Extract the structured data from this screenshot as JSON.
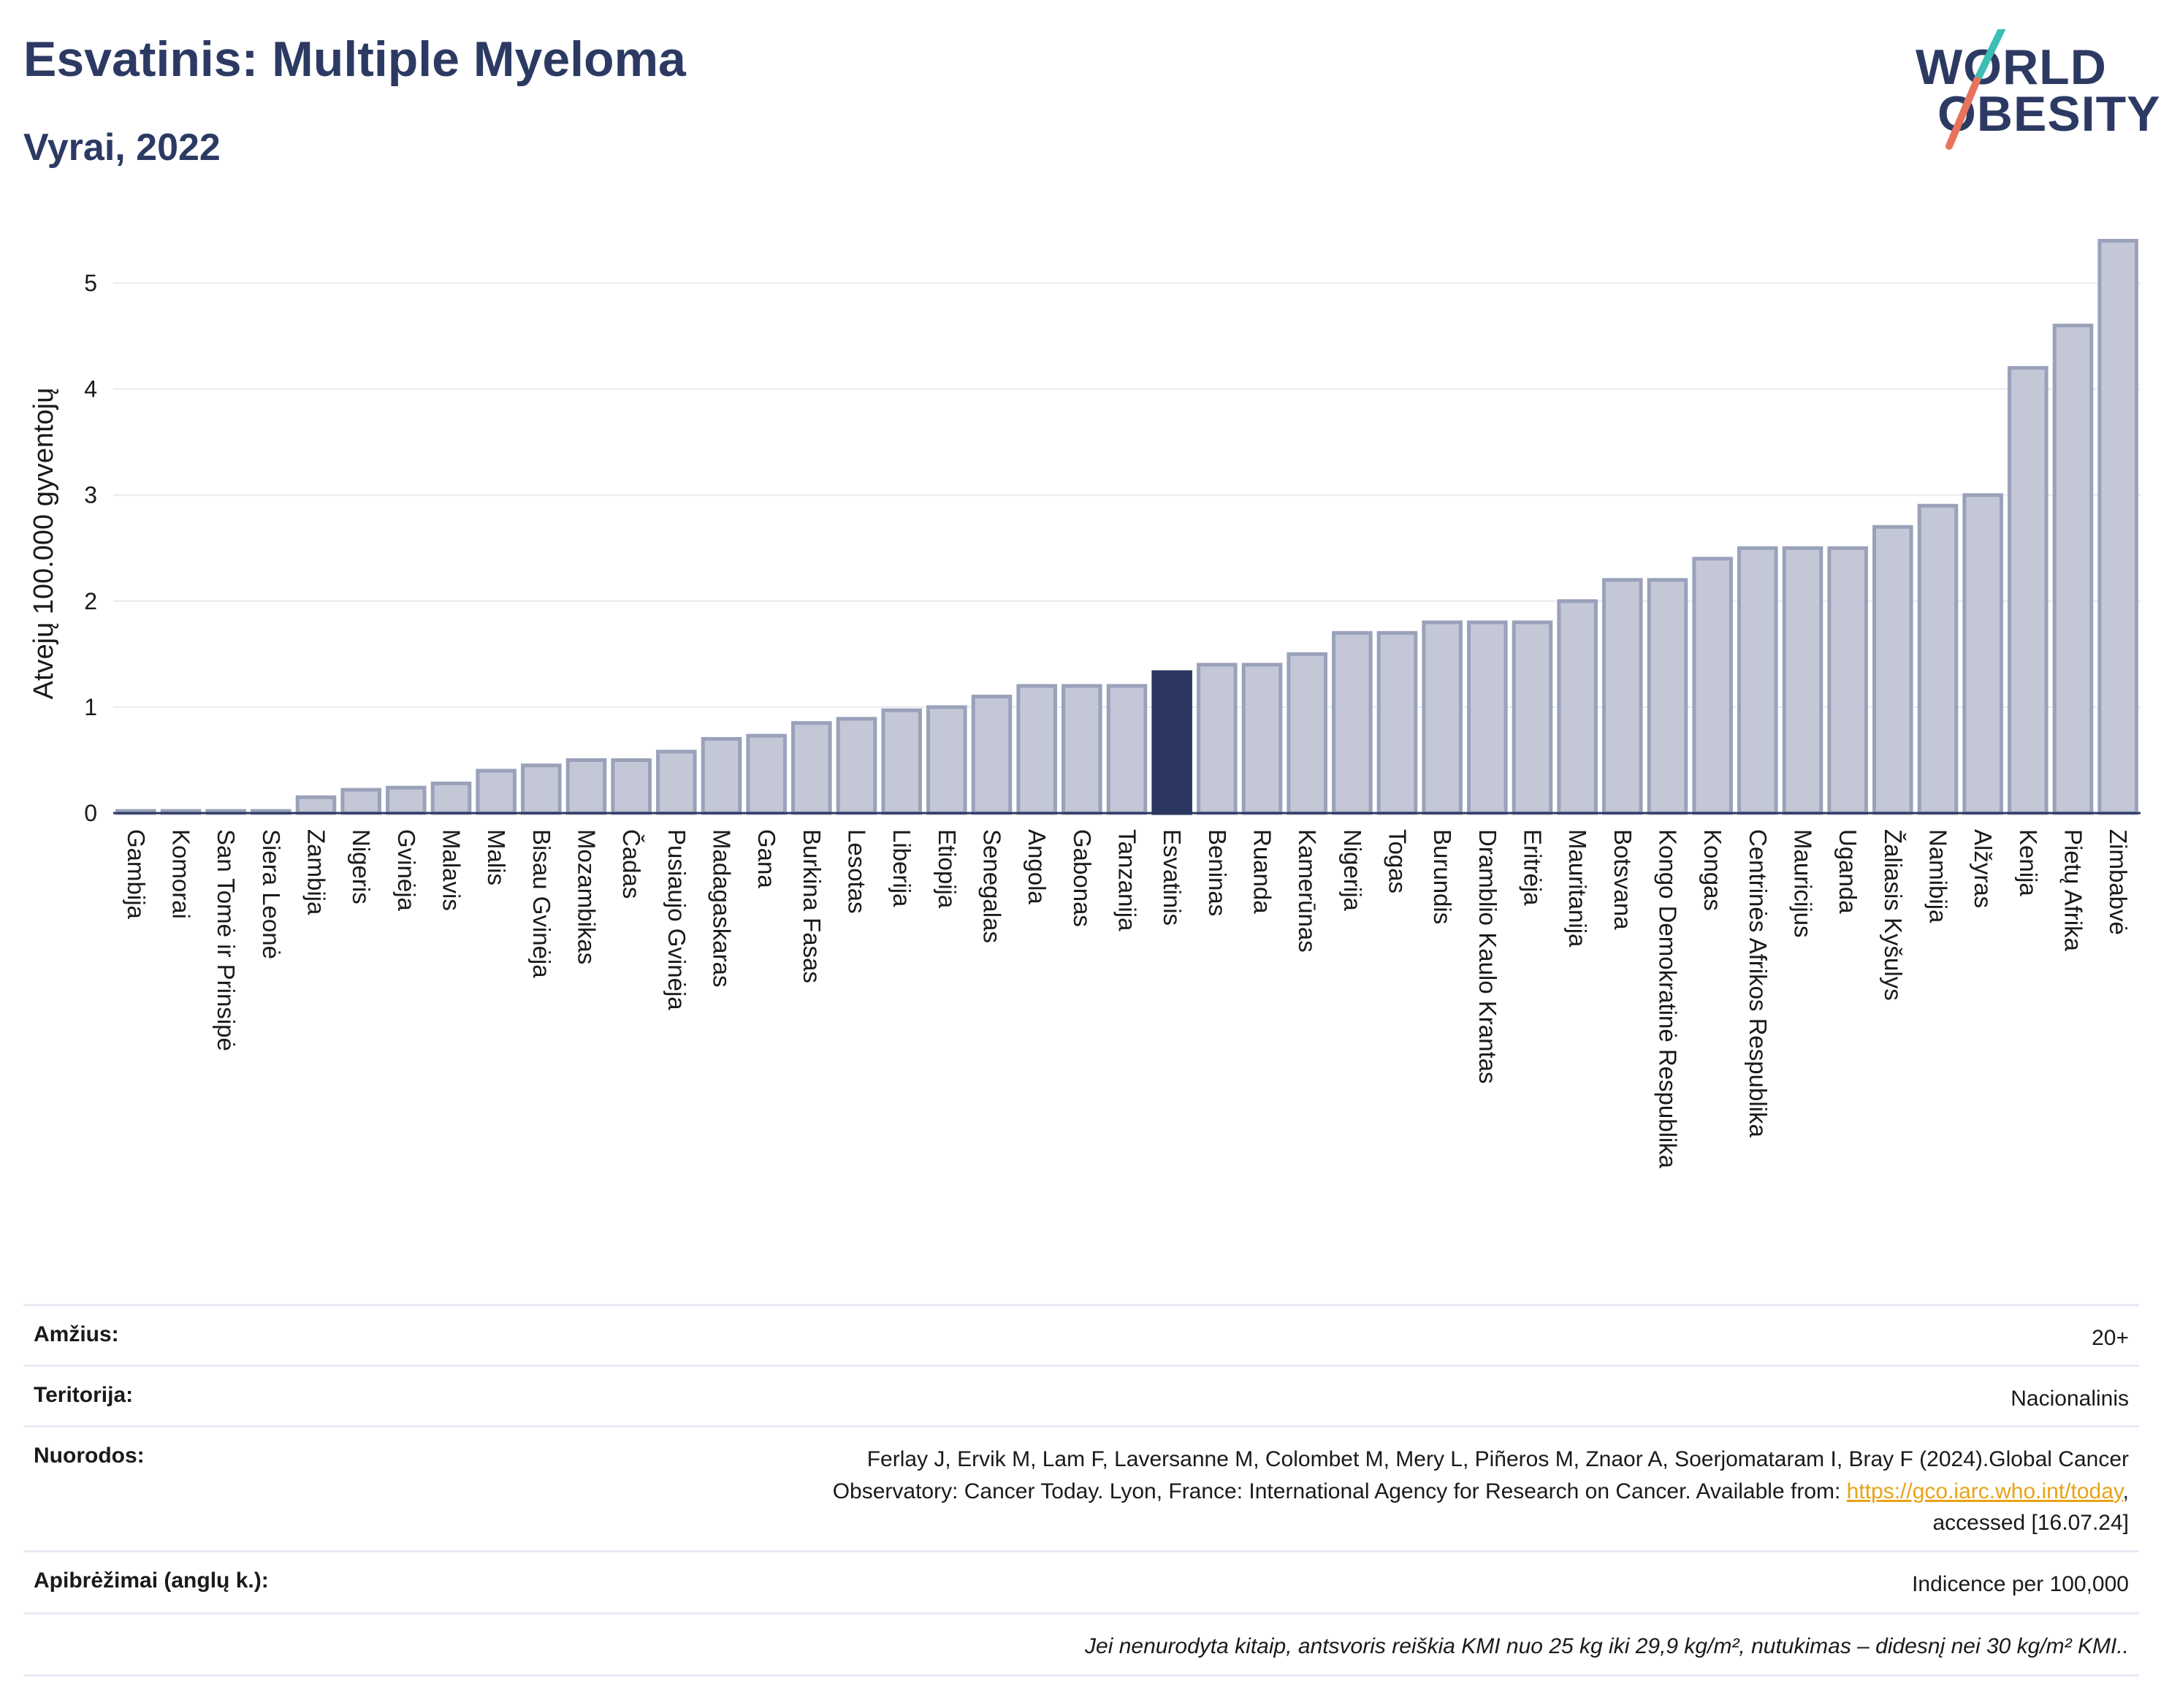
{
  "header": {
    "title": "Esvatinis: Multiple Myeloma",
    "subtitle": "Vyrai, 2022",
    "logo_line1": "WORLD",
    "logo_line2": "OBESITY"
  },
  "colors": {
    "bar": "#c3c7d6",
    "bar_stroke": "#9aa1ba",
    "highlight": "#2c3761",
    "text": "#2c3a63",
    "logo_teal": "#3bbfb5",
    "logo_coral": "#e8735c"
  },
  "chart_data": {
    "type": "bar",
    "title": "Esvatinis: Multiple Myeloma",
    "subtitle": "Vyrai, 2022",
    "ylabel": "Atvejų 100.000 gyventojų",
    "ylim": [
      0,
      5.5
    ],
    "yticks": [
      0,
      1,
      2,
      3,
      4,
      5
    ],
    "grid": true,
    "highlight": "Esvatinis",
    "categories": [
      "Gambija",
      "Komorai",
      "San Tomė ir Prinsipė",
      "Siera Leonė",
      "Zambija",
      "Nigeris",
      "Gvinėja",
      "Malavis",
      "Malis",
      "Bisau Gvinėja",
      "Mozambikas",
      "Čadas",
      "Pusiaujo Gvinėja",
      "Madagaskaras",
      "Gana",
      "Burkina Fasas",
      "Lesotas",
      "Liberija",
      "Etiopija",
      "Senegalas",
      "Angola",
      "Gabonas",
      "Tanzanija",
      "Esvatinis",
      "Beninas",
      "Ruanda",
      "Kamerūnas",
      "Nigerija",
      "Togas",
      "Burundis",
      "Dramblio Kaulo Krantas",
      "Eritrėja",
      "Mauritanija",
      "Botsvana",
      "Kongo Demokratinė Respublika",
      "Kongas",
      "Centrinės Afrikos Respublika",
      "Mauricijus",
      "Uganda",
      "Žaliasis Kyšulys",
      "Namibija",
      "Alžyras",
      "Kenija",
      "Pietų Afrika",
      "Zimbabvė"
    ],
    "values": [
      0.02,
      0.02,
      0.02,
      0.02,
      0.15,
      0.22,
      0.24,
      0.28,
      0.4,
      0.45,
      0.5,
      0.5,
      0.58,
      0.7,
      0.73,
      0.85,
      0.89,
      0.97,
      1.0,
      1.1,
      1.2,
      1.2,
      1.2,
      1.33,
      1.4,
      1.4,
      1.5,
      1.7,
      1.7,
      1.8,
      1.8,
      1.8,
      2.0,
      2.2,
      2.2,
      2.4,
      2.5,
      2.5,
      2.5,
      2.7,
      2.9,
      3.0,
      4.2,
      4.6,
      5.4
    ]
  },
  "info": {
    "age_label": "Amžius:",
    "age_value": "20+",
    "territory_label": "Teritorija:",
    "territory_value": "Nacionalinis",
    "refs_label": "Nuorodos:",
    "refs_line1": "Ferlay J, Ervik M, Lam F, Laversanne M, Colombet M, Mery L, Piñeros M, Znaor A, Soerjomataram I, Bray F (2024).Global Cancer",
    "refs_line2_pre": "Observatory: Cancer Today. Lyon, France: International Agency for Research on Cancer. Available from: ",
    "refs_link": "https://gco.iarc.who.int/today",
    "refs_line2_post": ",",
    "refs_line3": "accessed [16.07.24]",
    "defs_label": "Apibrėžimai (anglų k.):",
    "defs_value": "Indicence per 100,000",
    "note": "Jei nenurodyta kitaip, antsvoris reiškia KMI nuo 25 kg iki 29,9 kg/m², nutukimas – didesnį nei 30 kg/m² KMI.."
  }
}
